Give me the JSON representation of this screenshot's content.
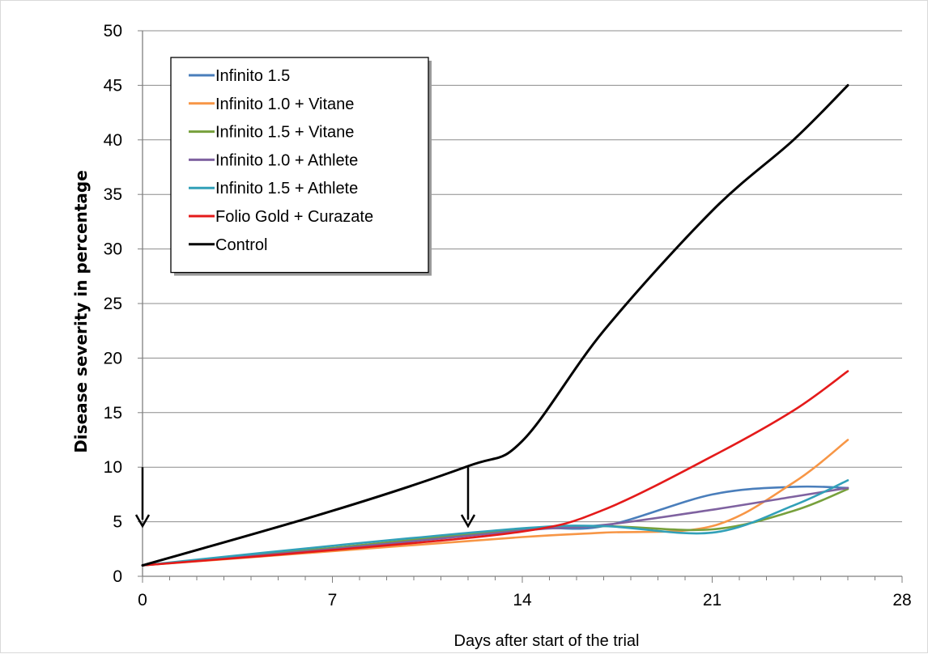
{
  "chart_data": {
    "type": "line",
    "title": "",
    "xlabel": "Days after start of the trial",
    "ylabel": "Disease severity in percentage",
    "xlim": [
      0,
      28
    ],
    "ylim": [
      0,
      50
    ],
    "xticks": [
      0,
      7,
      14,
      21,
      28
    ],
    "yticks": [
      0,
      5,
      10,
      15,
      20,
      25,
      30,
      35,
      40,
      45,
      50
    ],
    "grid": "horizontal",
    "legend_position": "top-left",
    "series": [
      {
        "name": "Infinito 1.5",
        "color": "#4a7ebb",
        "x": [
          0,
          7,
          14,
          17,
          21,
          24,
          26
        ],
        "y": [
          1,
          2.6,
          4.3,
          4.6,
          7.5,
          8.2,
          8.1
        ]
      },
      {
        "name": "Infinito 1.0 + Vitane",
        "color": "#f79646",
        "x": [
          0,
          7,
          14,
          17,
          21,
          24,
          26
        ],
        "y": [
          1,
          2.3,
          3.6,
          4.0,
          4.6,
          8.6,
          12.5
        ]
      },
      {
        "name": "Infinito 1.5 + Vitane",
        "color": "#77a03c",
        "x": [
          0,
          7,
          14,
          17,
          21,
          24,
          26
        ],
        "y": [
          1,
          2.6,
          4.3,
          4.6,
          4.3,
          6.0,
          8.0
        ]
      },
      {
        "name": "Infinito 1.0 + Athlete",
        "color": "#7f62a0",
        "x": [
          0,
          7,
          14,
          17,
          21,
          24,
          26
        ],
        "y": [
          1,
          2.5,
          4.2,
          4.7,
          6.1,
          7.3,
          8.1
        ]
      },
      {
        "name": "Infinito 1.5 + Athlete",
        "color": "#31a0b8",
        "x": [
          0,
          7,
          14,
          17,
          21,
          24,
          26
        ],
        "y": [
          1,
          2.8,
          4.4,
          4.6,
          4.0,
          6.5,
          8.8
        ]
      },
      {
        "name": "Folio Gold + Curazate",
        "color": "#e41a1a",
        "x": [
          0,
          7,
          14,
          17,
          21,
          24,
          26
        ],
        "y": [
          1,
          2.4,
          4.1,
          6.1,
          11.0,
          15.2,
          18.8
        ]
      },
      {
        "name": "Control",
        "color": "#000000",
        "x": [
          0,
          7,
          12,
          14,
          17,
          21,
          24,
          26
        ],
        "y": [
          1,
          6,
          10.1,
          12.4,
          22.5,
          33.5,
          40.0,
          45.0
        ]
      }
    ],
    "annotations": [
      {
        "type": "arrow",
        "x": 0,
        "y_from": 10,
        "y_to": 4.6
      },
      {
        "type": "arrow",
        "x": 12,
        "y_from": 10,
        "y_to": 4.6
      }
    ]
  }
}
